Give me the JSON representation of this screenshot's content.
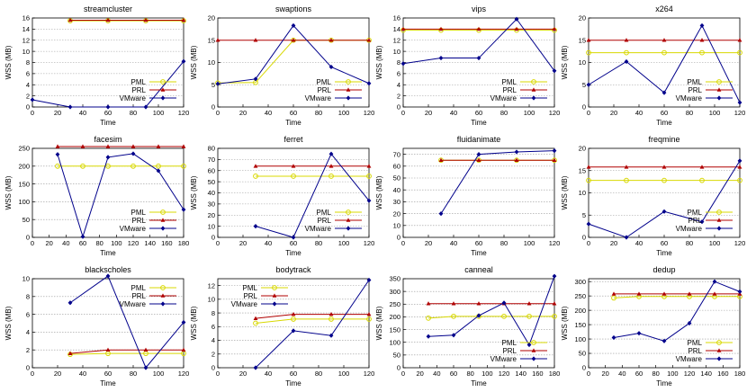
{
  "series_styles": [
    {
      "name": "PML",
      "color": "#d8d800",
      "marker": "circle"
    },
    {
      "name": "PRL",
      "color": "#b00000",
      "marker": "triangle"
    },
    {
      "name": "VMware",
      "color": "#00008b",
      "marker": "diamond"
    }
  ],
  "chart_data": [
    {
      "type": "line",
      "title": "streamcluster",
      "xlabel": "Time",
      "ylabel": "WSS (MB)",
      "xlim": [
        0,
        120
      ],
      "xticks": [
        0,
        20,
        40,
        60,
        80,
        100,
        120
      ],
      "ylim": [
        0,
        16
      ],
      "yticks": [
        0,
        2,
        4,
        6,
        8,
        10,
        12,
        14,
        16
      ],
      "grid": "y-dashed",
      "legend": "bottom-right",
      "series": [
        {
          "name": "PML",
          "x": [
            30,
            60,
            90,
            120
          ],
          "y": [
            15.5,
            15.5,
            15.5,
            15.5
          ]
        },
        {
          "name": "PRL",
          "x": [
            30,
            60,
            90,
            120
          ],
          "y": [
            15.6,
            15.6,
            15.6,
            15.6
          ]
        },
        {
          "name": "VMware",
          "x": [
            0,
            30,
            60,
            90,
            120
          ],
          "y": [
            1.3,
            0,
            0,
            0,
            8.2
          ]
        }
      ]
    },
    {
      "type": "line",
      "title": "swaptions",
      "xlabel": "Time",
      "ylabel": "WSS (MB)",
      "xlim": [
        0,
        120
      ],
      "xticks": [
        0,
        20,
        40,
        60,
        80,
        100,
        120
      ],
      "ylim": [
        0,
        20
      ],
      "yticks": [
        0,
        5,
        10,
        15,
        20
      ],
      "grid": "y-dashed",
      "legend": "bottom-right",
      "series": [
        {
          "name": "PML",
          "x": [
            0,
            30,
            60,
            90,
            120
          ],
          "y": [
            5.4,
            5.5,
            15,
            15,
            15
          ]
        },
        {
          "name": "PRL",
          "x": [
            0,
            30,
            60,
            90,
            120
          ],
          "y": [
            15,
            15,
            15,
            15,
            15
          ]
        },
        {
          "name": "VMware",
          "x": [
            0,
            30,
            60,
            90,
            120
          ],
          "y": [
            5.2,
            6.3,
            18.3,
            9,
            5.3
          ]
        }
      ]
    },
    {
      "type": "line",
      "title": "vips",
      "xlabel": "Time",
      "ylabel": "WSS (MB)",
      "xlim": [
        0,
        120
      ],
      "xticks": [
        0,
        20,
        40,
        60,
        80,
        100,
        120
      ],
      "ylim": [
        0,
        16
      ],
      "yticks": [
        0,
        2,
        4,
        6,
        8,
        10,
        12,
        14,
        16
      ],
      "grid": "y-dashed",
      "legend": "bottom-right",
      "series": [
        {
          "name": "PML",
          "x": [
            0,
            30,
            60,
            90,
            120
          ],
          "y": [
            13.8,
            13.8,
            13.8,
            13.8,
            13.8
          ]
        },
        {
          "name": "PRL",
          "x": [
            0,
            30,
            60,
            90,
            120
          ],
          "y": [
            14,
            14,
            14,
            14,
            14
          ]
        },
        {
          "name": "VMware",
          "x": [
            0,
            30,
            60,
            90,
            120
          ],
          "y": [
            7.8,
            8.8,
            8.8,
            15.8,
            6.5
          ]
        }
      ]
    },
    {
      "type": "line",
      "title": "x264",
      "xlabel": "Time",
      "ylabel": "WSS (MB)",
      "xlim": [
        0,
        120
      ],
      "xticks": [
        0,
        20,
        40,
        60,
        80,
        100,
        120
      ],
      "ylim": [
        0,
        20
      ],
      "yticks": [
        0,
        5,
        10,
        15,
        20
      ],
      "grid": "y-dashed",
      "legend": "bottom-right",
      "series": [
        {
          "name": "PML",
          "x": [
            0,
            30,
            60,
            90,
            120
          ],
          "y": [
            12.2,
            12.2,
            12.2,
            12.2,
            12.2
          ]
        },
        {
          "name": "PRL",
          "x": [
            0,
            30,
            60,
            90,
            120
          ],
          "y": [
            15,
            15,
            15,
            15,
            15
          ]
        },
        {
          "name": "VMware",
          "x": [
            0,
            30,
            60,
            90,
            120
          ],
          "y": [
            5,
            10.2,
            3.2,
            18.3,
            1
          ]
        }
      ]
    },
    {
      "type": "line",
      "title": "facesim",
      "xlabel": "Time",
      "ylabel": "WSS (MB)",
      "xlim": [
        0,
        180
      ],
      "xticks": [
        0,
        20,
        40,
        60,
        80,
        100,
        120,
        140,
        160,
        180
      ],
      "ylim": [
        0,
        250
      ],
      "yticks": [
        0,
        50,
        100,
        150,
        200,
        250
      ],
      "grid": "y-dashed",
      "legend": "bottom-right",
      "series": [
        {
          "name": "PML",
          "x": [
            30,
            60,
            90,
            120,
            150,
            180
          ],
          "y": [
            200,
            200,
            200,
            200,
            200,
            200
          ]
        },
        {
          "name": "PRL",
          "x": [
            30,
            60,
            90,
            120,
            150,
            180
          ],
          "y": [
            255,
            255,
            255,
            255,
            255,
            255
          ]
        },
        {
          "name": "VMware",
          "x": [
            30,
            60,
            90,
            120,
            150,
            180
          ],
          "y": [
            233,
            2,
            225,
            235,
            187,
            78
          ]
        }
      ]
    },
    {
      "type": "line",
      "title": "ferret",
      "xlabel": "Time",
      "ylabel": "WSS (MB)",
      "xlim": [
        0,
        120
      ],
      "xticks": [
        0,
        20,
        40,
        60,
        80,
        100,
        120
      ],
      "ylim": [
        0,
        80
      ],
      "yticks": [
        0,
        10,
        20,
        30,
        40,
        50,
        60,
        70,
        80
      ],
      "grid": "y-dashed",
      "legend": "bottom-right",
      "series": [
        {
          "name": "PML",
          "x": [
            30,
            60,
            90,
            120
          ],
          "y": [
            55,
            55,
            55,
            55
          ]
        },
        {
          "name": "PRL",
          "x": [
            30,
            60,
            90,
            120
          ],
          "y": [
            64,
            64,
            64,
            64
          ]
        },
        {
          "name": "VMware",
          "x": [
            30,
            60,
            90,
            120
          ],
          "y": [
            10,
            0,
            75,
            33
          ]
        }
      ]
    },
    {
      "type": "line",
      "title": "fluidanimate",
      "xlabel": "Time",
      "ylabel": "WSS (MB)",
      "xlim": [
        0,
        120
      ],
      "xticks": [
        0,
        20,
        40,
        60,
        80,
        100,
        120
      ],
      "ylim": [
        0,
        75
      ],
      "yticks": [
        0,
        10,
        20,
        30,
        40,
        50,
        60,
        70
      ],
      "grid": "y-dashed",
      "legend": "none",
      "series": [
        {
          "name": "PML",
          "x": [
            30,
            60,
            90,
            120
          ],
          "y": [
            65,
            65,
            65,
            65
          ]
        },
        {
          "name": "PRL",
          "x": [
            30,
            60,
            90,
            120
          ],
          "y": [
            65,
            65,
            65,
            65
          ]
        },
        {
          "name": "VMware",
          "x": [
            30,
            60,
            90,
            120
          ],
          "y": [
            20,
            70,
            72,
            73
          ]
        }
      ]
    },
    {
      "type": "line",
      "title": "freqmine",
      "xlabel": "Time",
      "ylabel": "WSS (MB)",
      "xlim": [
        0,
        120
      ],
      "xticks": [
        0,
        20,
        40,
        60,
        80,
        100,
        120
      ],
      "ylim": [
        0,
        20
      ],
      "yticks": [
        0,
        5,
        10,
        15,
        20
      ],
      "grid": "y-dashed",
      "legend": "bottom-right",
      "series": [
        {
          "name": "PML",
          "x": [
            0,
            30,
            60,
            90,
            120
          ],
          "y": [
            12.8,
            12.8,
            12.8,
            12.8,
            12.8
          ]
        },
        {
          "name": "PRL",
          "x": [
            0,
            30,
            60,
            90,
            120
          ],
          "y": [
            15.8,
            15.8,
            15.8,
            15.8,
            15.8
          ]
        },
        {
          "name": "VMware",
          "x": [
            0,
            30,
            60,
            90,
            120
          ],
          "y": [
            3,
            0,
            5.8,
            3.5,
            17.2
          ]
        }
      ]
    },
    {
      "type": "line",
      "title": "blackscholes",
      "xlabel": "Time",
      "ylabel": "WSS (MB)",
      "xlim": [
        0,
        120
      ],
      "xticks": [
        0,
        20,
        40,
        60,
        80,
        100,
        120
      ],
      "ylim": [
        0,
        10
      ],
      "yticks": [
        0,
        2,
        4,
        6,
        8,
        10
      ],
      "grid": "y-dashed",
      "legend": "top-right",
      "series": [
        {
          "name": "PML",
          "x": [
            30,
            60,
            90,
            120
          ],
          "y": [
            1.5,
            1.6,
            1.6,
            1.6
          ]
        },
        {
          "name": "PRL",
          "x": [
            30,
            60,
            90,
            120
          ],
          "y": [
            1.6,
            2,
            2,
            2
          ]
        },
        {
          "name": "VMware",
          "x": [
            30,
            60,
            90,
            120
          ],
          "y": [
            7.3,
            10.3,
            0,
            5.1
          ]
        }
      ]
    },
    {
      "type": "line",
      "title": "bodytrack",
      "xlabel": "Time",
      "ylabel": "WSS (MB)",
      "xlim": [
        0,
        120
      ],
      "xticks": [
        0,
        20,
        40,
        60,
        80,
        100,
        120
      ],
      "ylim": [
        0,
        13
      ],
      "yticks": [
        0,
        2,
        4,
        6,
        8,
        10,
        12
      ],
      "grid": "y-dashed",
      "legend": "top-left",
      "series": [
        {
          "name": "PML",
          "x": [
            30,
            60,
            90,
            120
          ],
          "y": [
            6.5,
            7.1,
            7.1,
            7.1
          ]
        },
        {
          "name": "PRL",
          "x": [
            30,
            60,
            90,
            120
          ],
          "y": [
            7.2,
            7.8,
            7.8,
            7.8
          ]
        },
        {
          "name": "VMware",
          "x": [
            30,
            60,
            90,
            120
          ],
          "y": [
            0,
            5.4,
            4.7,
            12.8
          ]
        }
      ]
    },
    {
      "type": "line",
      "title": "canneal",
      "xlabel": "Time",
      "ylabel": "WSS (MB)",
      "xlim": [
        0,
        180
      ],
      "xticks": [
        0,
        20,
        40,
        60,
        80,
        100,
        120,
        140,
        160,
        180
      ],
      "ylim": [
        0,
        350
      ],
      "yticks": [
        0,
        50,
        100,
        150,
        200,
        250,
        300,
        350
      ],
      "grid": "y-dashed",
      "legend": "bottom-right",
      "series": [
        {
          "name": "PML",
          "x": [
            30,
            60,
            90,
            120,
            150,
            180
          ],
          "y": [
            195,
            202,
            202,
            202,
            202,
            202
          ]
        },
        {
          "name": "PRL",
          "x": [
            30,
            60,
            90,
            120,
            150,
            180
          ],
          "y": [
            252,
            252,
            252,
            252,
            252,
            252
          ]
        },
        {
          "name": "VMware",
          "x": [
            30,
            60,
            90,
            120,
            150,
            180
          ],
          "y": [
            123,
            128,
            205,
            255,
            90,
            360
          ]
        }
      ]
    },
    {
      "type": "line",
      "title": "dedup",
      "xlabel": "Time",
      "ylabel": "WSS (MB)",
      "xlim": [
        0,
        180
      ],
      "xticks": [
        0,
        20,
        40,
        60,
        80,
        100,
        120,
        140,
        160,
        180
      ],
      "ylim": [
        0,
        310
      ],
      "yticks": [
        0,
        50,
        100,
        150,
        200,
        250,
        300
      ],
      "grid": "y-dashed",
      "legend": "bottom-right",
      "series": [
        {
          "name": "PML",
          "x": [
            30,
            60,
            90,
            120,
            150,
            180
          ],
          "y": [
            243,
            248,
            248,
            248,
            248,
            248
          ]
        },
        {
          "name": "PRL",
          "x": [
            30,
            60,
            90,
            120,
            150,
            180
          ],
          "y": [
            257,
            257,
            257,
            257,
            257,
            257
          ]
        },
        {
          "name": "VMware",
          "x": [
            30,
            60,
            90,
            120,
            150,
            180
          ],
          "y": [
            105,
            120,
            93,
            155,
            300,
            265
          ]
        }
      ]
    }
  ]
}
